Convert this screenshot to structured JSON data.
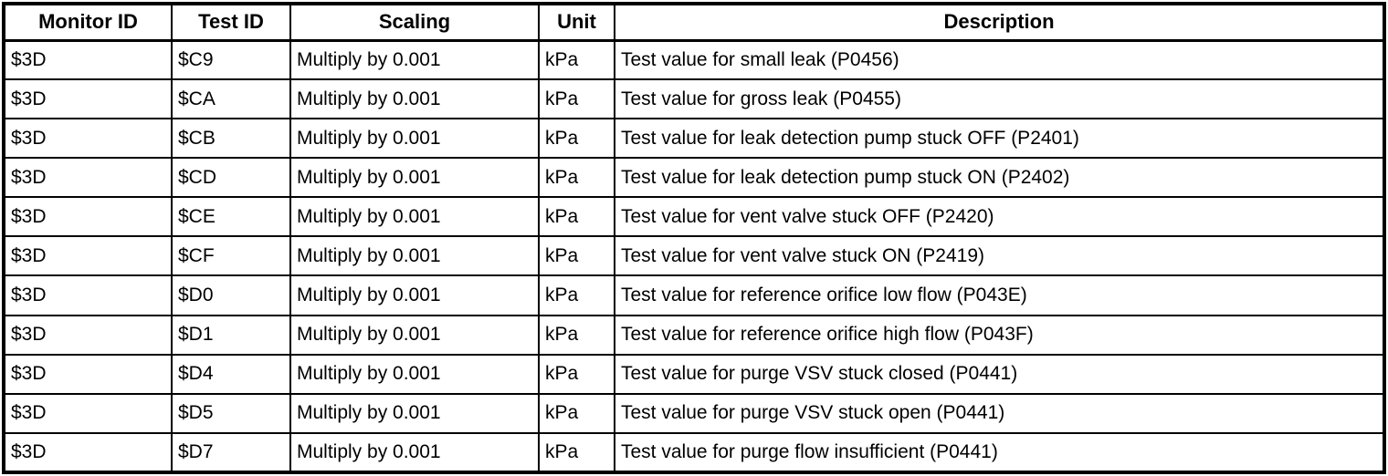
{
  "table": {
    "headers": [
      "Monitor ID",
      "Test ID",
      "Scaling",
      "Unit",
      "Description"
    ],
    "rows": [
      [
        "$3D",
        "$C9",
        "Multiply by 0.001",
        "kPa",
        "Test value for small leak (P0456)"
      ],
      [
        "$3D",
        "$CA",
        "Multiply by 0.001",
        "kPa",
        "Test value for gross leak (P0455)"
      ],
      [
        "$3D",
        "$CB",
        "Multiply by 0.001",
        "kPa",
        "Test value for leak detection pump stuck OFF (P2401)"
      ],
      [
        "$3D",
        "$CD",
        "Multiply by 0.001",
        "kPa",
        "Test value for leak detection pump stuck ON (P2402)"
      ],
      [
        "$3D",
        "$CE",
        "Multiply by 0.001",
        "kPa",
        "Test value for vent valve stuck OFF (P2420)"
      ],
      [
        "$3D",
        "$CF",
        "Multiply by 0.001",
        "kPa",
        "Test value for vent valve stuck ON (P2419)"
      ],
      [
        "$3D",
        "$D0",
        "Multiply by 0.001",
        "kPa",
        "Test value for reference orifice low flow (P043E)"
      ],
      [
        "$3D",
        "$D1",
        "Multiply by 0.001",
        "kPa",
        "Test value for reference orifice high flow (P043F)"
      ],
      [
        "$3D",
        "$D4",
        "Multiply by 0.001",
        "kPa",
        "Test value for purge VSV stuck closed (P0441)"
      ],
      [
        "$3D",
        "$D5",
        "Multiply by 0.001",
        "kPa",
        "Test value for purge VSV stuck open (P0441)"
      ],
      [
        "$3D",
        "$D7",
        "Multiply by 0.001",
        "kPa",
        "Test value for purge flow insufficient (P0441)"
      ]
    ],
    "colors": {
      "border": "#000000",
      "text": "#000000",
      "background": "#ffffff"
    }
  }
}
